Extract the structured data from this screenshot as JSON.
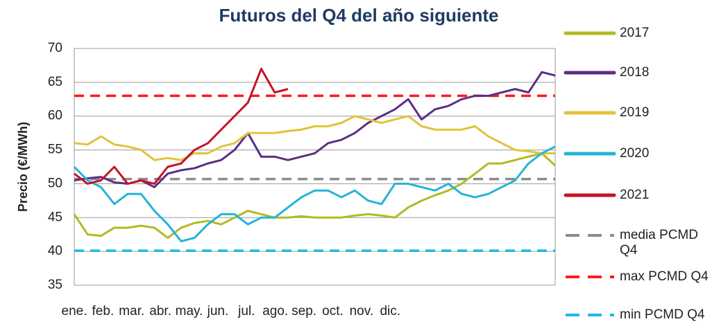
{
  "chart_data": {
    "type": "line",
    "title": "Futuros del Q4 del año siguiente",
    "y_label": "Precio (€/MWh)",
    "x": [
      0,
      1,
      2,
      3,
      4,
      5,
      6,
      7,
      8,
      9,
      10,
      11,
      12,
      13,
      14,
      15,
      16,
      17,
      18,
      19,
      20,
      21,
      22,
      23,
      24,
      25,
      26,
      27,
      28,
      29,
      30,
      31,
      32,
      33,
      34,
      35,
      36
    ],
    "xlim": [
      0,
      36
    ],
    "xticks": [
      {
        "value": 0,
        "label": "ene."
      },
      {
        "value": 2.15,
        "label": "feb."
      },
      {
        "value": 4.3,
        "label": "mar."
      },
      {
        "value": 6.45,
        "label": "abr."
      },
      {
        "value": 8.6,
        "label": "may."
      },
      {
        "value": 10.75,
        "label": "jun."
      },
      {
        "value": 12.9,
        "label": "jul."
      },
      {
        "value": 15.05,
        "label": "ago."
      },
      {
        "value": 17.2,
        "label": "sep."
      },
      {
        "value": 19.35,
        "label": "oct."
      },
      {
        "value": 21.5,
        "label": "nov."
      },
      {
        "value": 23.65,
        "label": "dic."
      }
    ],
    "ylim": [
      35,
      70
    ],
    "yticks": [
      35,
      40,
      45,
      50,
      55,
      60,
      65,
      70
    ],
    "grid": true,
    "legend": "right",
    "series": [
      {
        "name": "2017",
        "color": "#b1bb1f",
        "values": [
          45.5,
          42.5,
          42.3,
          43.5,
          43.5,
          43.8,
          43.5,
          42,
          43.5,
          44.2,
          44.5,
          44,
          45,
          46,
          45.5,
          45,
          45,
          45.2,
          45,
          45,
          45,
          45.3,
          45.5,
          45.3,
          45,
          46.5,
          47.5,
          48.3,
          49,
          50,
          51.5,
          53,
          53,
          53.5,
          54,
          54.5,
          52.7
        ]
      },
      {
        "name": "2018",
        "color": "#5b2e84",
        "values": [
          50.5,
          50.8,
          51,
          50.2,
          50,
          50.5,
          49.5,
          51.5,
          52,
          52.3,
          53,
          53.5,
          55,
          57.5,
          54,
          54,
          53.5,
          54,
          54.5,
          56,
          56.5,
          57.5,
          59,
          60,
          61,
          62.5,
          59.5,
          61,
          61.5,
          62.5,
          63,
          63,
          63.5,
          64,
          63.5,
          66.5,
          66
        ]
      },
      {
        "name": "2019",
        "color": "#e2c23a",
        "values": [
          56,
          55.8,
          57,
          55.8,
          55.5,
          55,
          53.5,
          53.8,
          53.5,
          54.5,
          54.5,
          55.5,
          56,
          57.5,
          57.5,
          57.5,
          57.8,
          58,
          58.5,
          58.5,
          59,
          60,
          59.5,
          59,
          59.5,
          60,
          58.5,
          58,
          58,
          58,
          58.5,
          57,
          56,
          55,
          54.8,
          54.5,
          54.5
        ]
      },
      {
        "name": "2020",
        "color": "#23b4d8",
        "values": [
          52.5,
          50.5,
          49.5,
          47,
          48.5,
          48.5,
          46,
          44,
          41.5,
          42,
          44,
          45.5,
          45.5,
          44,
          45,
          45,
          46.5,
          48,
          49,
          49,
          48,
          49,
          47.5,
          47,
          50,
          50,
          49.5,
          49,
          50,
          48.5,
          48,
          48.5,
          49.5,
          50.5,
          53,
          54.5,
          55.5
        ]
      },
      {
        "name": "2021",
        "color": "#c41423",
        "values": [
          51.5,
          50,
          50.5,
          52.5,
          50,
          50.5,
          50,
          52.5,
          53,
          55,
          56,
          58,
          60,
          62,
          67,
          63.5,
          64,
          null,
          null,
          null,
          null,
          null,
          null,
          null,
          null,
          null,
          null,
          null,
          null,
          null,
          null,
          null,
          null,
          null,
          null,
          null,
          null
        ]
      }
    ],
    "reference_lines": [
      {
        "name": "media PCMD Q4",
        "color": "#8c8c8c",
        "value": 50.7
      },
      {
        "name": "max PCMD Q4",
        "color": "#ff1a1a",
        "value": 63
      },
      {
        "name": "min PCMD Q4",
        "color": "#1fb7ea",
        "value": 40.1
      }
    ]
  }
}
